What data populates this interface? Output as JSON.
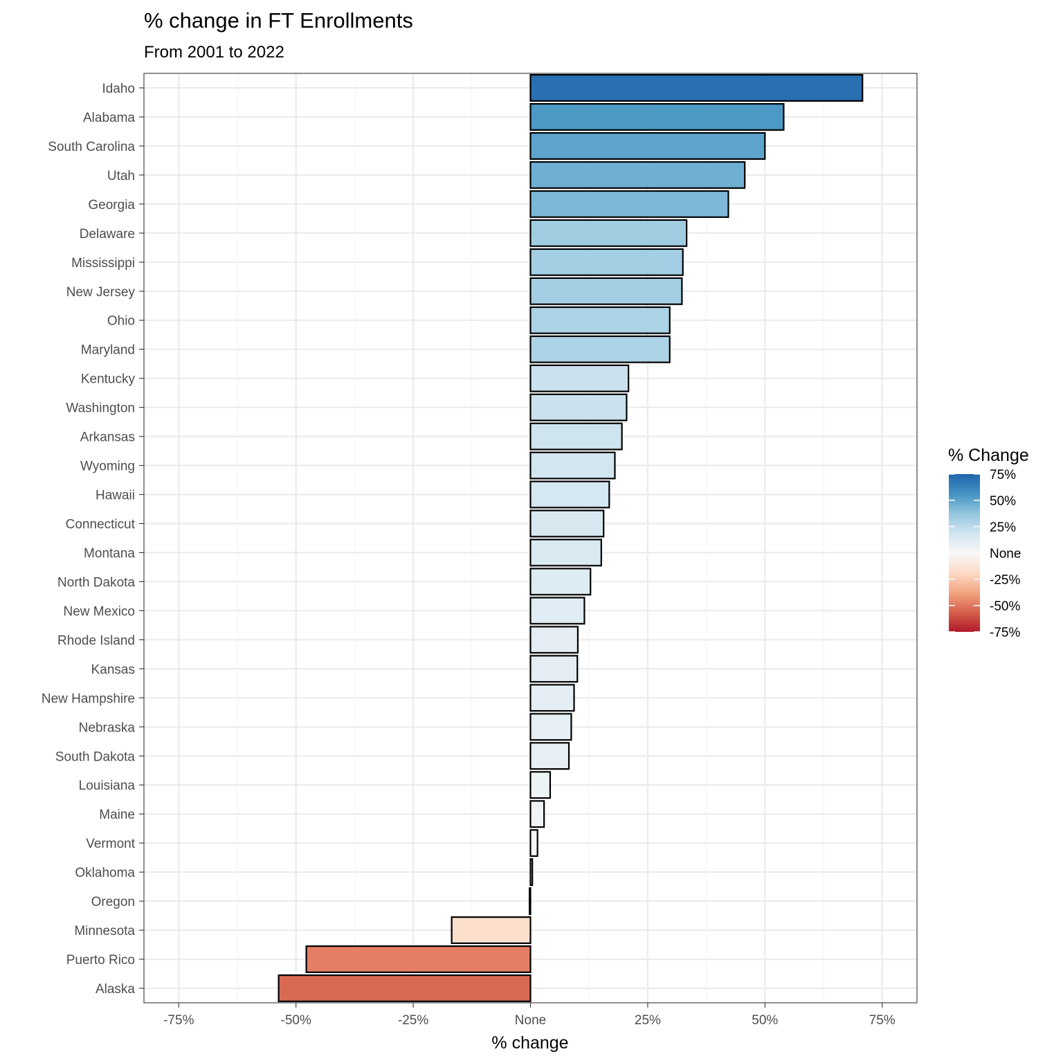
{
  "chart_data": {
    "type": "bar",
    "orientation": "horizontal",
    "title": "% change in FT Enrollments",
    "subtitle": "From 2001 to 2022",
    "xlabel": "% change",
    "ylabel": "",
    "xlim": [
      -0.8,
      0.82
    ],
    "x_ticks": [
      {
        "value": -0.75,
        "label": "-75%"
      },
      {
        "value": -0.5,
        "label": "-50%"
      },
      {
        "value": -0.25,
        "label": "-25%"
      },
      {
        "value": 0,
        "label": "None"
      },
      {
        "value": 0.25,
        "label": "25%"
      },
      {
        "value": 0.5,
        "label": "50%"
      },
      {
        "value": 0.75,
        "label": "75%"
      }
    ],
    "grid": true,
    "categories": [
      "Idaho",
      "Alabama",
      "South Carolina",
      "Utah",
      "Georgia",
      "Delaware",
      "Mississippi",
      "New Jersey",
      "Ohio",
      "Maryland",
      "Kentucky",
      "Washington",
      "Arkansas",
      "Wyoming",
      "Hawaii",
      "Connecticut",
      "Montana",
      "North Dakota",
      "New Mexico",
      "Rhode Island",
      "Kansas",
      "New Hampshire",
      "Nebraska",
      "South Dakota",
      "Louisiana",
      "Maine",
      "Vermont",
      "Oklahoma",
      "Oregon",
      "Minnesota",
      "Puerto Rico",
      "Alaska"
    ],
    "values": [
      0.708,
      0.54,
      0.5,
      0.457,
      0.422,
      0.333,
      0.325,
      0.323,
      0.297,
      0.297,
      0.209,
      0.205,
      0.195,
      0.18,
      0.168,
      0.156,
      0.151,
      0.128,
      0.115,
      0.101,
      0.1,
      0.093,
      0.087,
      0.082,
      0.042,
      0.029,
      0.015,
      0.004,
      -0.002,
      -0.168,
      -0.478,
      -0.537
    ],
    "legend": {
      "title": "% Change",
      "position": "right",
      "range": [
        -0.75,
        0.75
      ],
      "ticks": [
        {
          "value": 0.75,
          "label": "75%"
        },
        {
          "value": 0.5,
          "label": "50%"
        },
        {
          "value": 0.25,
          "label": "25%"
        },
        {
          "value": 0,
          "label": "None"
        },
        {
          "value": -0.25,
          "label": "-25%"
        },
        {
          "value": -0.5,
          "label": "-50%"
        },
        {
          "value": -0.75,
          "label": "-75%"
        }
      ],
      "palette": [
        "#b2182b",
        "#d6604d",
        "#f4a582",
        "#fddbc7",
        "#f7f7f7",
        "#d1e5f0",
        "#92c5de",
        "#4393c3",
        "#2166ac"
      ]
    }
  }
}
